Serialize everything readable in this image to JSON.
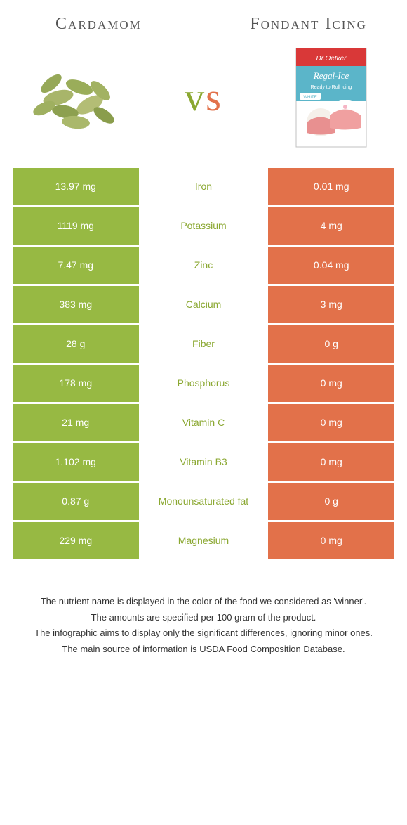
{
  "colors": {
    "left": "#97b943",
    "right": "#e2714a",
    "left_text": "#8ba832",
    "right_text": "#e2714a",
    "heading": "#555555",
    "footnote": "#333333"
  },
  "left_food": "Cardamom",
  "right_food": "Fondant Icing",
  "vs": "vs",
  "rows": [
    {
      "nutrient": "Iron",
      "left": "13.97 mg",
      "right": "0.01 mg",
      "winner": "left"
    },
    {
      "nutrient": "Potassium",
      "left": "1119 mg",
      "right": "4 mg",
      "winner": "left"
    },
    {
      "nutrient": "Zinc",
      "left": "7.47 mg",
      "right": "0.04 mg",
      "winner": "left"
    },
    {
      "nutrient": "Calcium",
      "left": "383 mg",
      "right": "3 mg",
      "winner": "left"
    },
    {
      "nutrient": "Fiber",
      "left": "28 g",
      "right": "0 g",
      "winner": "left"
    },
    {
      "nutrient": "Phosphorus",
      "left": "178 mg",
      "right": "0 mg",
      "winner": "left"
    },
    {
      "nutrient": "Vitamin C",
      "left": "21 mg",
      "right": "0 mg",
      "winner": "left"
    },
    {
      "nutrient": "Vitamin B3",
      "left": "1.102 mg",
      "right": "0 mg",
      "winner": "left"
    },
    {
      "nutrient": "Monounsaturated fat",
      "left": "0.87 g",
      "right": "0 g",
      "winner": "left"
    },
    {
      "nutrient": "Magnesium",
      "left": "229 mg",
      "right": "0 mg",
      "winner": "left"
    }
  ],
  "footnotes": [
    "The nutrient name is displayed in the color of the food we considered as 'winner'.",
    "The amounts are specified per 100 gram of the product.",
    "The infographic aims to display only the significant differences, ignoring minor ones.",
    "The main source of information is USDA Food Composition Database."
  ]
}
